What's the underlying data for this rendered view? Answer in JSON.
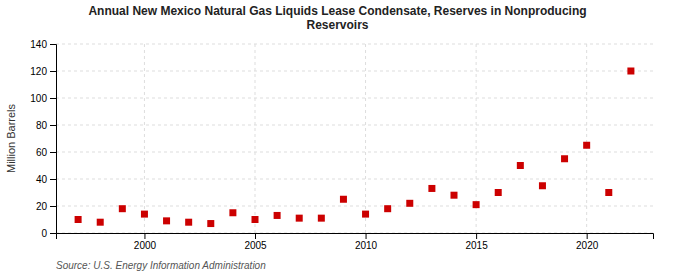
{
  "chart_data": {
    "type": "scatter",
    "title": "Annual New Mexico Natural Gas Liquids Lease Condensate, Reserves in Nonproducing\nReservoirs",
    "ylabel": "Million Barrels",
    "source": "Source: U.S. Energy Information Administration",
    "x": [
      1997,
      1998,
      1999,
      2000,
      2001,
      2002,
      2003,
      2004,
      2005,
      2006,
      2007,
      2008,
      2009,
      2010,
      2011,
      2012,
      2013,
      2014,
      2015,
      2016,
      2017,
      2018,
      2019,
      2020,
      2021,
      2022
    ],
    "values": [
      10,
      8,
      18,
      14,
      9,
      8,
      7,
      15,
      10,
      13,
      11,
      11,
      25,
      14,
      18,
      22,
      33,
      28,
      21,
      30,
      50,
      35,
      55,
      65,
      30,
      120
    ],
    "color": "#cc0000",
    "marker": "square",
    "grid": true,
    "xlim": [
      1996,
      2023
    ],
    "xticks": [
      2000,
      2005,
      2010,
      2015,
      2020
    ],
    "ylim": [
      0,
      140
    ],
    "yticks": [
      0,
      20,
      40,
      60,
      80,
      100,
      120,
      140
    ]
  }
}
